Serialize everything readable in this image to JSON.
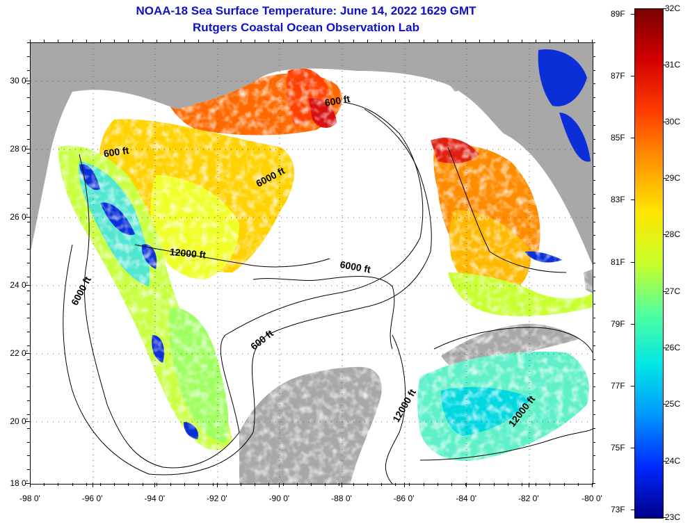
{
  "title": {
    "line1": "NOAA-18 Sea Surface Temperature:  June 14, 2022 1629 GMT",
    "line2": "Rutgers Coastal Ocean Observation Lab"
  },
  "map": {
    "lat_labels": [
      "30 0'",
      "28 0'",
      "26 0'",
      "24 0'",
      "22 0'",
      "20 0'",
      "18 0'"
    ],
    "lon_labels": [
      "-98 0'",
      "-96 0'",
      "-94 0'",
      "-92 0'",
      "-90 0'",
      "-88 0'",
      "-86 0'",
      "-84 0'",
      "-82 0'",
      "-80 0'"
    ],
    "contour_labels": [
      {
        "id": "c600-ne",
        "text": "600 ft"
      },
      {
        "id": "c600-nw",
        "text": "600 ft"
      },
      {
        "id": "c6000-n",
        "text": "6000 ft"
      },
      {
        "id": "c12000-w",
        "text": "12000 ft"
      },
      {
        "id": "c6000-c",
        "text": "6000 ft"
      },
      {
        "id": "c6000-w",
        "text": "6000 ft"
      },
      {
        "id": "c600-s",
        "text": "600 ft"
      },
      {
        "id": "c12000-s",
        "text": "12000 ft"
      },
      {
        "id": "c12000-se",
        "text": "12000 ft"
      }
    ],
    "colors": {
      "land": "#a8a8a8",
      "no_data": "#ffffff"
    }
  },
  "colorbar": {
    "fahrenheit_labels": [
      "89F",
      "87F",
      "85F",
      "83F",
      "81F",
      "79F",
      "77F",
      "75F",
      "73F"
    ],
    "celsius_labels": [
      "32C",
      "31C",
      "30C",
      "29C",
      "28C",
      "27C",
      "26C",
      "25C",
      "24C",
      "23C"
    ],
    "colors": [
      "#7a0000",
      "#d40000",
      "#ff3c00",
      "#ff9600",
      "#ffe600",
      "#c8ff28",
      "#50ffa0",
      "#00e6e6",
      "#0096ff",
      "#0028ff",
      "#00008c"
    ]
  }
}
